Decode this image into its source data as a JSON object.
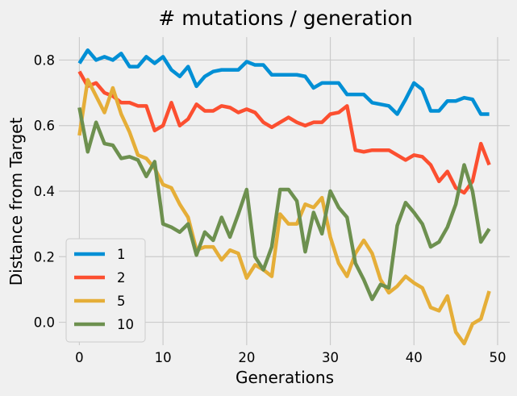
{
  "chart_data": {
    "type": "line",
    "title": "# mutations / generation",
    "xlabel": "Generations",
    "ylabel": "Distance from Target",
    "xlim": [
      -2.45,
      51.45
    ],
    "ylim": [
      -0.07,
      0.87
    ],
    "xticks": [
      0,
      10,
      20,
      30,
      40,
      50
    ],
    "yticks": [
      0.0,
      0.2,
      0.4,
      0.6,
      0.8
    ],
    "xtick_labels": [
      "0",
      "10",
      "20",
      "30",
      "40",
      "50"
    ],
    "ytick_labels": [
      "0.0",
      "0.2",
      "0.4",
      "0.6",
      "0.8"
    ],
    "grid": true,
    "legend_position": "lower-left",
    "x": [
      0,
      1,
      2,
      3,
      4,
      5,
      6,
      7,
      8,
      9,
      10,
      11,
      12,
      13,
      14,
      15,
      16,
      17,
      18,
      19,
      20,
      21,
      22,
      23,
      24,
      25,
      26,
      27,
      28,
      29,
      30,
      31,
      32,
      33,
      34,
      35,
      36,
      37,
      38,
      39,
      40,
      41,
      42,
      43,
      44,
      45,
      46,
      47,
      48,
      49
    ],
    "series": [
      {
        "name": "1",
        "color": "#008fd5",
        "values": [
          0.79,
          0.83,
          0.8,
          0.81,
          0.8,
          0.82,
          0.78,
          0.78,
          0.81,
          0.79,
          0.81,
          0.77,
          0.75,
          0.78,
          0.72,
          0.75,
          0.765,
          0.77,
          0.77,
          0.77,
          0.795,
          0.785,
          0.785,
          0.755,
          0.755,
          0.755,
          0.755,
          0.75,
          0.715,
          0.73,
          0.73,
          0.73,
          0.695,
          0.695,
          0.695,
          0.67,
          0.665,
          0.66,
          0.635,
          0.68,
          0.73,
          0.71,
          0.645,
          0.645,
          0.675,
          0.675,
          0.685,
          0.68,
          0.635,
          0.635
        ]
      },
      {
        "name": "2",
        "color": "#fc4f30",
        "values": [
          0.765,
          0.72,
          0.73,
          0.7,
          0.69,
          0.67,
          0.67,
          0.66,
          0.66,
          0.585,
          0.6,
          0.67,
          0.6,
          0.62,
          0.665,
          0.645,
          0.645,
          0.66,
          0.655,
          0.64,
          0.65,
          0.64,
          0.61,
          0.595,
          0.61,
          0.625,
          0.61,
          0.6,
          0.61,
          0.61,
          0.635,
          0.64,
          0.66,
          0.525,
          0.52,
          0.525,
          0.525,
          0.525,
          0.51,
          0.495,
          0.51,
          0.505,
          0.48,
          0.43,
          0.46,
          0.41,
          0.395,
          0.43,
          0.545,
          0.48
        ]
      },
      {
        "name": "5",
        "color": "#e5ae38",
        "values": [
          0.57,
          0.74,
          0.69,
          0.64,
          0.715,
          0.635,
          0.58,
          0.51,
          0.5,
          0.47,
          0.42,
          0.41,
          0.36,
          0.32,
          0.22,
          0.23,
          0.23,
          0.19,
          0.22,
          0.21,
          0.135,
          0.175,
          0.16,
          0.14,
          0.33,
          0.3,
          0.3,
          0.36,
          0.35,
          0.38,
          0.26,
          0.18,
          0.14,
          0.21,
          0.25,
          0.21,
          0.13,
          0.09,
          0.11,
          0.14,
          0.12,
          0.105,
          0.045,
          0.035,
          0.08,
          -0.03,
          -0.065,
          -0.005,
          0.01,
          0.095
        ]
      },
      {
        "name": "10",
        "color": "#6d904f",
        "values": [
          0.655,
          0.52,
          0.61,
          0.545,
          0.54,
          0.5,
          0.505,
          0.495,
          0.445,
          0.49,
          0.3,
          0.29,
          0.275,
          0.3,
          0.205,
          0.275,
          0.25,
          0.32,
          0.26,
          0.33,
          0.405,
          0.2,
          0.16,
          0.23,
          0.405,
          0.405,
          0.37,
          0.215,
          0.335,
          0.27,
          0.4,
          0.35,
          0.32,
          0.18,
          0.13,
          0.07,
          0.115,
          0.105,
          0.295,
          0.365,
          0.335,
          0.3,
          0.23,
          0.245,
          0.29,
          0.36,
          0.48,
          0.4,
          0.245,
          0.285
        ]
      }
    ]
  }
}
